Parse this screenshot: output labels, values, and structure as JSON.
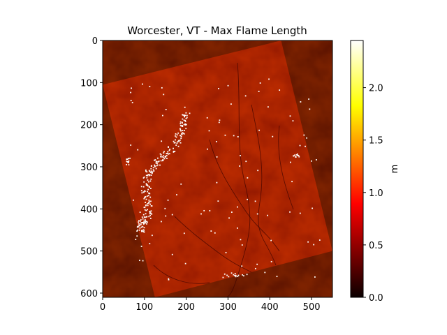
{
  "chart_data": {
    "type": "heatmap",
    "title": "Worcester, VT - Max Flame Length",
    "xlabel": "",
    "ylabel": "",
    "xlim": [
      0,
      550
    ],
    "ylim": [
      610,
      0
    ],
    "x_ticks": [
      0,
      100,
      200,
      300,
      400,
      500
    ],
    "y_ticks": [
      0,
      100,
      200,
      300,
      400,
      500,
      600
    ],
    "colorbar": {
      "label": "m",
      "range": [
        0.0,
        2.45
      ],
      "ticks": [
        0.0,
        0.5,
        1.0,
        1.5,
        2.0
      ],
      "tick_labels": [
        "0.0",
        "0.5",
        "1.0",
        "1.5",
        "2.0"
      ],
      "colormap": "hot"
    },
    "data_footprint_corners": [
      [
        0,
        105
      ],
      [
        427,
        0
      ],
      [
        550,
        500
      ],
      [
        125,
        610
      ]
    ],
    "nodata_color": "#0b0000",
    "typical_value_m": 0.45,
    "high_value_m": 2.45
  },
  "colors": {
    "background": "#0b0000",
    "terrain": "#8c1000",
    "high": "#ffffff"
  }
}
